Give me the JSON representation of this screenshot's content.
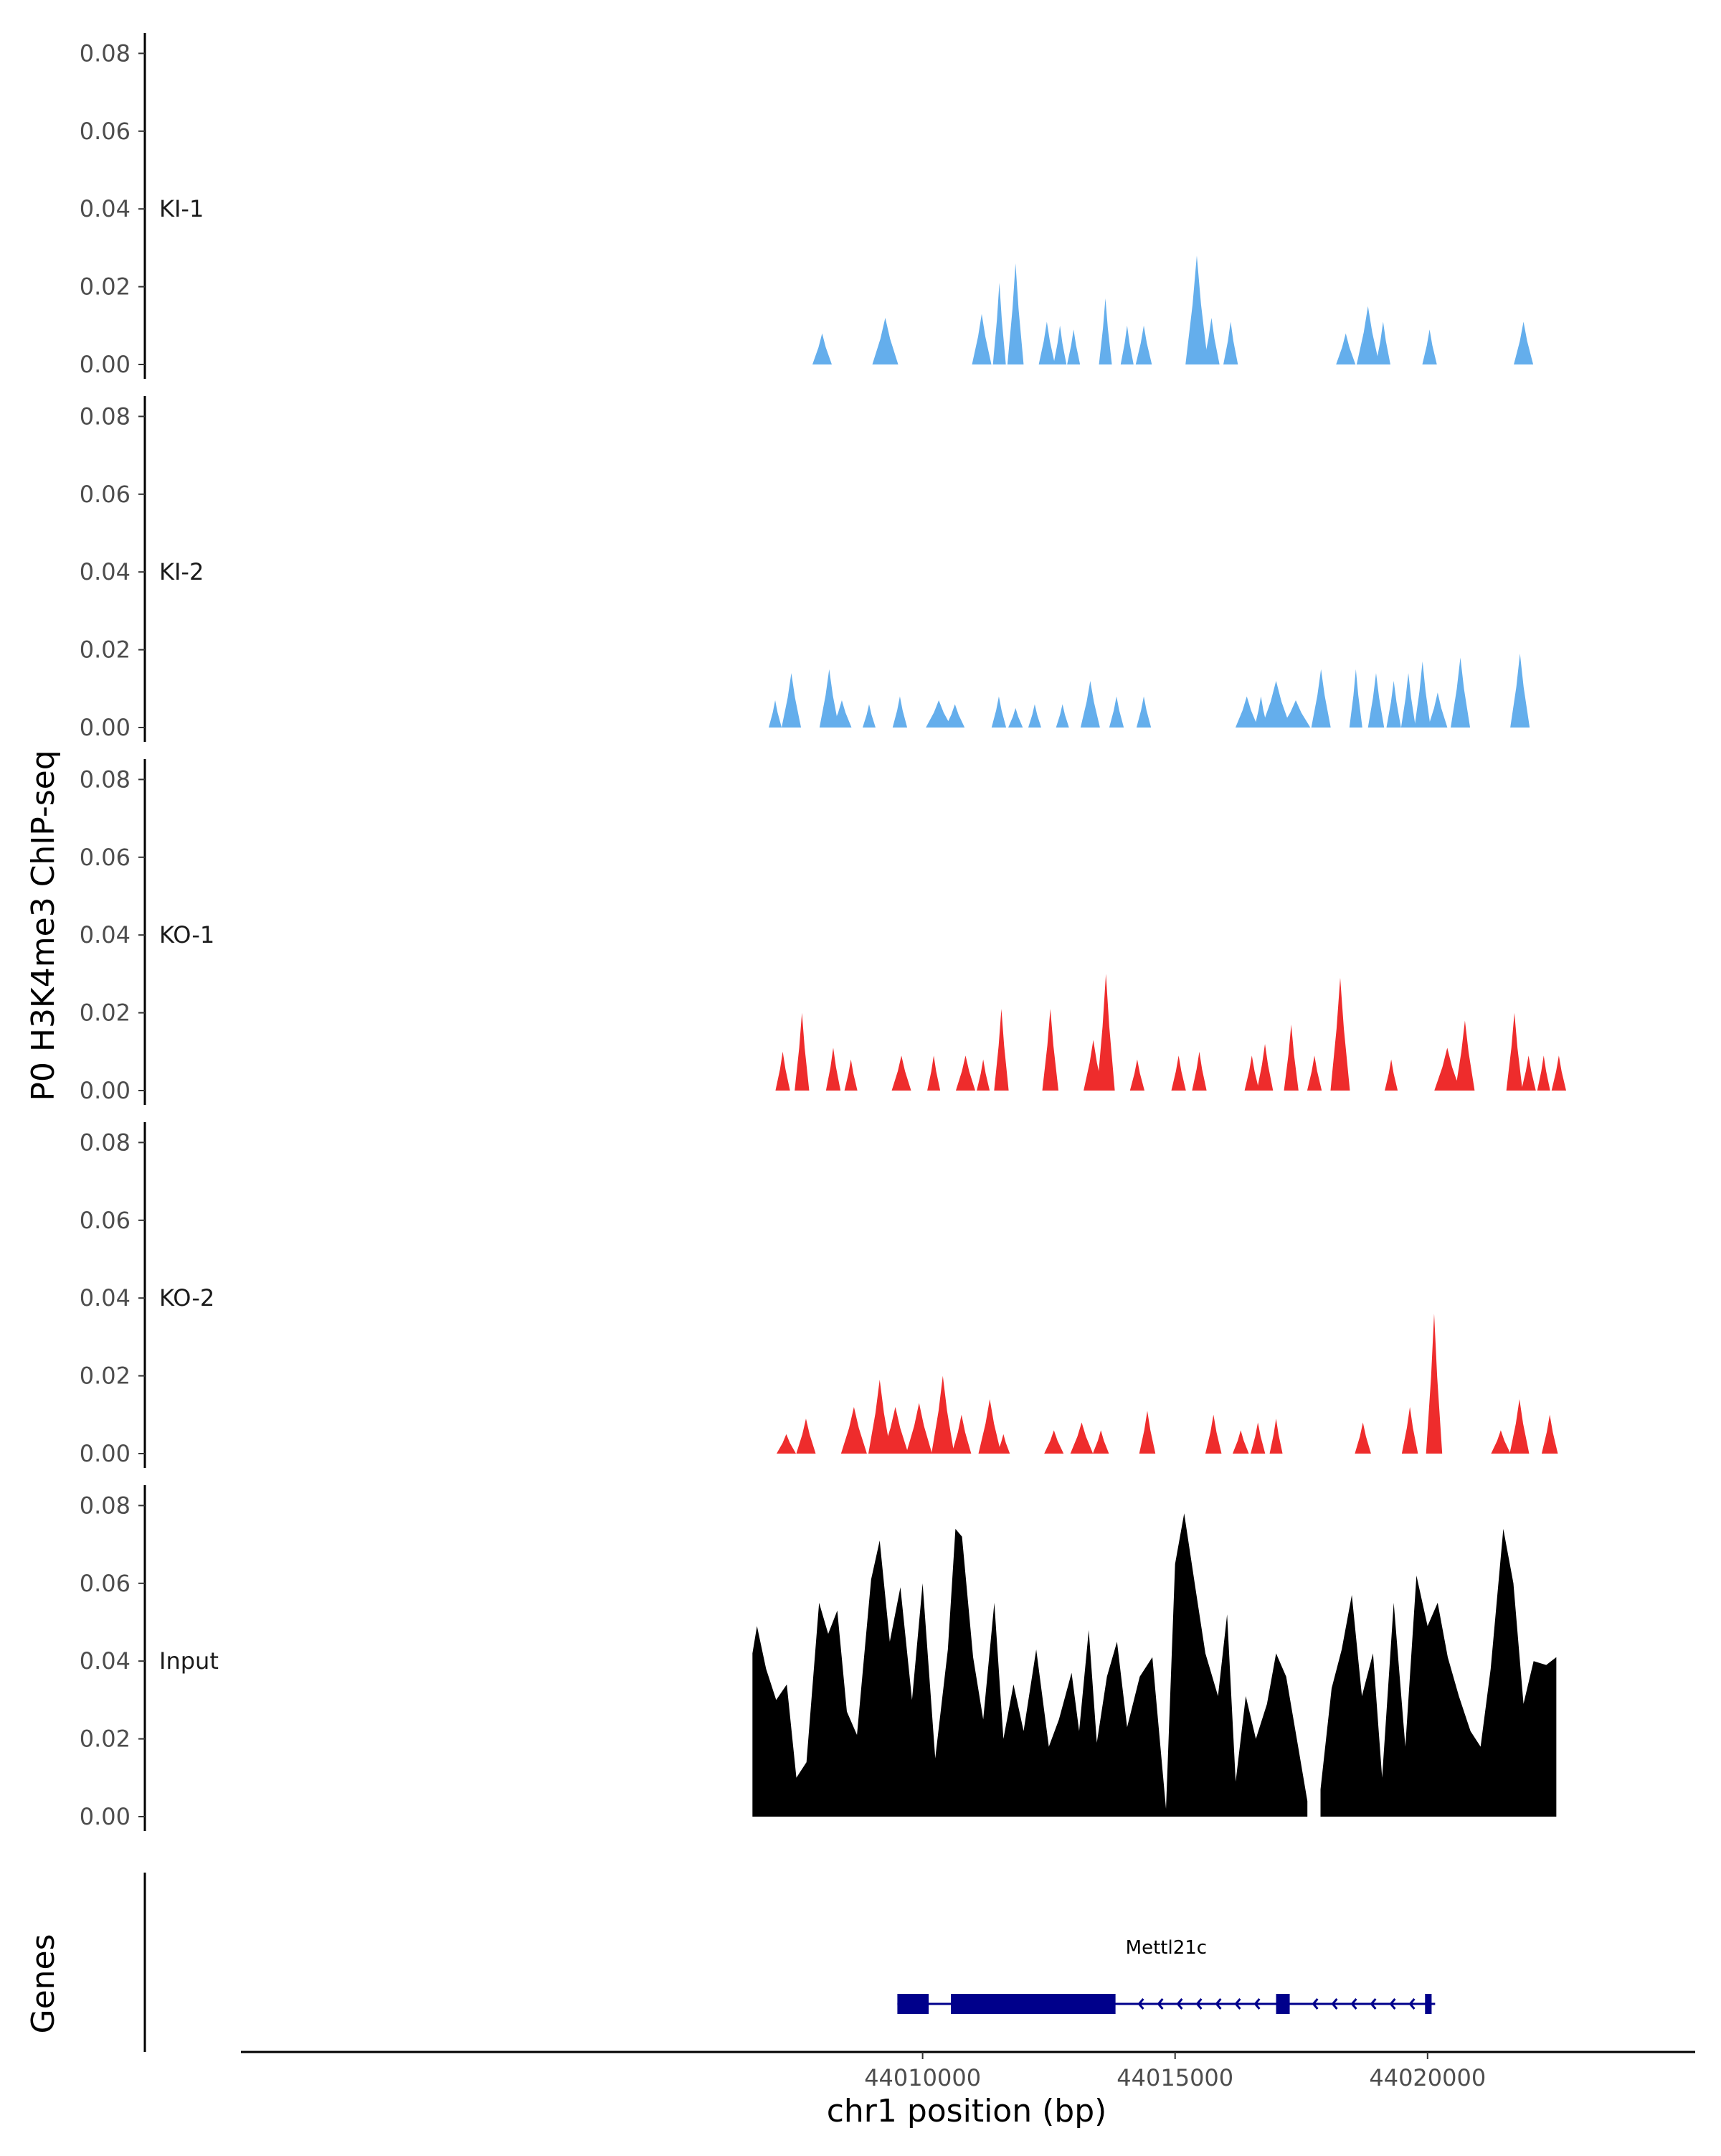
{
  "chart_data": {
    "type": "area",
    "title": "",
    "ylabel": "P0 H3K4me3 ChIP-seq",
    "xlabel": "chr1 position (bp)",
    "genes_label": "Genes",
    "xlim": [
      43996500,
      44025300
    ],
    "x_ticks": [
      {
        "value": 44010000,
        "label": "44010000"
      },
      {
        "value": 44015000,
        "label": "44015000"
      },
      {
        "value": 44020000,
        "label": "44020000"
      }
    ],
    "y_ticks": [
      {
        "value": 0.0,
        "label": "0.00"
      },
      {
        "value": 0.02,
        "label": "0.02"
      },
      {
        "value": 0.04,
        "label": "0.04"
      },
      {
        "value": 0.06,
        "label": "0.06"
      },
      {
        "value": 0.08,
        "label": "0.08"
      }
    ],
    "ylim": [
      0,
      0.085
    ],
    "colors": {
      "KI": "#64aeec",
      "KO": "#ee2c2c",
      "Input": "#000000",
      "gene": "#00008b"
    },
    "series": [
      {
        "name": "KI-1",
        "color": "#64aeec",
        "peaks": [
          [
            44008010,
            60,
            0.008
          ],
          [
            44009260,
            80,
            0.012
          ],
          [
            44011170,
            60,
            0.013
          ],
          [
            44011520,
            40,
            0.021
          ],
          [
            44011840,
            50,
            0.026
          ],
          [
            44012460,
            50,
            0.011
          ],
          [
            44012720,
            40,
            0.01
          ],
          [
            44012990,
            40,
            0.009
          ],
          [
            44013620,
            40,
            0.017
          ],
          [
            44014050,
            40,
            0.01
          ],
          [
            44014380,
            50,
            0.01
          ],
          [
            44015430,
            70,
            0.028
          ],
          [
            44015720,
            50,
            0.012
          ],
          [
            44016100,
            45,
            0.011
          ],
          [
            44018380,
            60,
            0.008
          ],
          [
            44018820,
            70,
            0.015
          ],
          [
            44019120,
            45,
            0.011
          ],
          [
            44020040,
            45,
            0.009
          ],
          [
            44021900,
            60,
            0.011
          ]
        ]
      },
      {
        "name": "KI-2",
        "color": "#64aeec",
        "peaks": [
          [
            44007080,
            40,
            0.007
          ],
          [
            44007400,
            60,
            0.014
          ],
          [
            44008150,
            60,
            0.015
          ],
          [
            44008400,
            60,
            0.007
          ],
          [
            44008940,
            40,
            0.006
          ],
          [
            44009550,
            45,
            0.008
          ],
          [
            44010320,
            80,
            0.007
          ],
          [
            44010640,
            60,
            0.006
          ],
          [
            44011510,
            45,
            0.008
          ],
          [
            44011840,
            45,
            0.005
          ],
          [
            44012220,
            40,
            0.006
          ],
          [
            44012770,
            40,
            0.006
          ],
          [
            44013320,
            60,
            0.012
          ],
          [
            44013840,
            45,
            0.008
          ],
          [
            44014380,
            45,
            0.008
          ],
          [
            44016420,
            70,
            0.008
          ],
          [
            44016700,
            40,
            0.008
          ],
          [
            44017000,
            90,
            0.012
          ],
          [
            44017390,
            90,
            0.007
          ],
          [
            44017890,
            60,
            0.015
          ],
          [
            44018580,
            40,
            0.015
          ],
          [
            44018980,
            50,
            0.014
          ],
          [
            44019330,
            45,
            0.012
          ],
          [
            44019620,
            45,
            0.014
          ],
          [
            44019900,
            50,
            0.017
          ],
          [
            44020200,
            60,
            0.009
          ],
          [
            44020650,
            60,
            0.018
          ],
          [
            44021830,
            60,
            0.019
          ]
        ]
      },
      {
        "name": "KO-1",
        "color": "#ee2c2c",
        "peaks": [
          [
            44007230,
            45,
            0.01
          ],
          [
            44007610,
            45,
            0.02
          ],
          [
            44008230,
            45,
            0.011
          ],
          [
            44008580,
            40,
            0.008
          ],
          [
            44009580,
            60,
            0.009
          ],
          [
            44010220,
            40,
            0.009
          ],
          [
            44010850,
            60,
            0.009
          ],
          [
            44011200,
            40,
            0.008
          ],
          [
            44011560,
            45,
            0.021
          ],
          [
            44012530,
            50,
            0.021
          ],
          [
            44013380,
            60,
            0.013
          ],
          [
            44013630,
            55,
            0.03
          ],
          [
            44014250,
            45,
            0.008
          ],
          [
            44015070,
            45,
            0.009
          ],
          [
            44015480,
            45,
            0.01
          ],
          [
            44016520,
            45,
            0.009
          ],
          [
            44016780,
            50,
            0.012
          ],
          [
            44017300,
            45,
            0.017
          ],
          [
            44017760,
            45,
            0.009
          ],
          [
            44018270,
            60,
            0.029
          ],
          [
            44019280,
            40,
            0.008
          ],
          [
            44020390,
            80,
            0.011
          ],
          [
            44020740,
            60,
            0.018
          ],
          [
            44021720,
            50,
            0.02
          ],
          [
            44022000,
            45,
            0.009
          ],
          [
            44022300,
            40,
            0.009
          ],
          [
            44022600,
            45,
            0.009
          ]
        ]
      },
      {
        "name": "KO-2",
        "color": "#ee2c2c",
        "peaks": [
          [
            44007300,
            60,
            0.005
          ],
          [
            44007690,
            60,
            0.009
          ],
          [
            44008640,
            80,
            0.012
          ],
          [
            44009150,
            70,
            0.019
          ],
          [
            44009460,
            80,
            0.012
          ],
          [
            44009930,
            80,
            0.013
          ],
          [
            44010400,
            70,
            0.02
          ],
          [
            44010770,
            60,
            0.01
          ],
          [
            44011330,
            70,
            0.014
          ],
          [
            44011280,
            40,
            0.005
          ],
          [
            44011600,
            40,
            0.005
          ],
          [
            44012600,
            60,
            0.006
          ],
          [
            44013150,
            70,
            0.008
          ],
          [
            44013530,
            50,
            0.006
          ],
          [
            44014450,
            50,
            0.011
          ],
          [
            44015760,
            50,
            0.01
          ],
          [
            44016300,
            50,
            0.006
          ],
          [
            44016640,
            45,
            0.008
          ],
          [
            44017000,
            40,
            0.009
          ],
          [
            44018720,
            50,
            0.008
          ],
          [
            44019650,
            50,
            0.012
          ],
          [
            44020130,
            50,
            0.036
          ],
          [
            44021450,
            60,
            0.006
          ],
          [
            44021820,
            60,
            0.014
          ],
          [
            44022420,
            50,
            0.01
          ]
        ]
      },
      {
        "name": "Input",
        "color": "#000000",
        "points": [
          [
            44006630,
            0.042
          ],
          [
            44006720,
            0.049
          ],
          [
            44006900,
            0.038
          ],
          [
            44007100,
            0.03
          ],
          [
            44007310,
            0.034
          ],
          [
            44007500,
            0.01
          ],
          [
            44007700,
            0.014
          ],
          [
            44007950,
            0.055
          ],
          [
            44008130,
            0.047
          ],
          [
            44008310,
            0.053
          ],
          [
            44008500,
            0.027
          ],
          [
            44008700,
            0.021
          ],
          [
            44008980,
            0.061
          ],
          [
            44009150,
            0.071
          ],
          [
            44009350,
            0.045
          ],
          [
            44009560,
            0.059
          ],
          [
            44009790,
            0.03
          ],
          [
            44010000,
            0.06
          ],
          [
            44010250,
            0.015
          ],
          [
            44010500,
            0.043
          ],
          [
            44010650,
            0.074
          ],
          [
            44010780,
            0.072
          ],
          [
            44011000,
            0.041
          ],
          [
            44011200,
            0.025
          ],
          [
            44011420,
            0.055
          ],
          [
            44011600,
            0.02
          ],
          [
            44011800,
            0.034
          ],
          [
            44012000,
            0.022
          ],
          [
            44012250,
            0.043
          ],
          [
            44012500,
            0.018
          ],
          [
            44012700,
            0.025
          ],
          [
            44012950,
            0.037
          ],
          [
            44013100,
            0.022
          ],
          [
            44013290,
            0.048
          ],
          [
            44013450,
            0.019
          ],
          [
            44013650,
            0.036
          ],
          [
            44013850,
            0.045
          ],
          [
            44014050,
            0.023
          ],
          [
            44014300,
            0.036
          ],
          [
            44014550,
            0.041
          ],
          [
            44014820,
            0.002
          ],
          [
            44015000,
            0.065
          ],
          [
            44015180,
            0.078
          ],
          [
            44015400,
            0.059
          ],
          [
            44015600,
            0.042
          ],
          [
            44015850,
            0.031
          ],
          [
            44016030,
            0.052
          ],
          [
            44016200,
            0.009
          ],
          [
            44016400,
            0.031
          ],
          [
            44016600,
            0.02
          ],
          [
            44016820,
            0.029
          ],
          [
            44017000,
            0.042
          ],
          [
            44017200,
            0.036
          ],
          [
            44017450,
            0.017
          ],
          [
            44017620,
            0.004
          ],
          [
            44017880,
            0.007
          ],
          [
            44018100,
            0.033
          ],
          [
            44018300,
            0.043
          ],
          [
            44018500,
            0.057
          ],
          [
            44018700,
            0.031
          ],
          [
            44018920,
            0.042
          ],
          [
            44019100,
            0.01
          ],
          [
            44019330,
            0.055
          ],
          [
            44019560,
            0.018
          ],
          [
            44019780,
            0.062
          ],
          [
            44020000,
            0.049
          ],
          [
            44020200,
            0.055
          ],
          [
            44020400,
            0.041
          ],
          [
            44020620,
            0.031
          ],
          [
            44020850,
            0.022
          ],
          [
            44021050,
            0.018
          ],
          [
            44021250,
            0.038
          ],
          [
            44021500,
            0.074
          ],
          [
            44021700,
            0.06
          ],
          [
            44021900,
            0.029
          ],
          [
            44022100,
            0.04
          ],
          [
            44022350,
            0.039
          ],
          [
            44022550,
            0.041
          ]
        ]
      }
    ],
    "input_gap": [
      44017670,
      44017850
    ],
    "gene": {
      "name": "Mettl21c",
      "strand": "-",
      "start": 44009500,
      "end": 44020150,
      "exons": [
        [
          44009500,
          44010120
        ],
        [
          44010560,
          44013820
        ],
        [
          44017000,
          44017270
        ],
        [
          44019950,
          44020080
        ]
      ]
    }
  }
}
